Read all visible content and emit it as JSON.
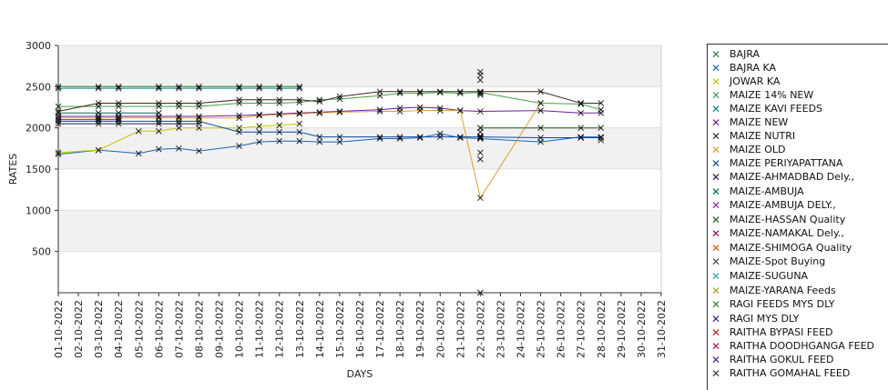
{
  "chart_data": {
    "type": "line",
    "title": "",
    "xlabel": "DAYS",
    "ylabel": "RATES",
    "ylim": [
      0,
      3000
    ],
    "yticks": [
      500,
      1000,
      1500,
      2000,
      2500,
      3000
    ],
    "grid": true,
    "legend_position": "right",
    "categories": [
      "01-10-2022",
      "02-10-2022",
      "03-10-2022",
      "04-10-2022",
      "05-10-2022",
      "06-10-2022",
      "07-10-2022",
      "08-10-2022",
      "09-10-2022",
      "10-10-2022",
      "11-10-2022",
      "12-10-2022",
      "13-10-2022",
      "14-10-2022",
      "15-10-2022",
      "16-10-2022",
      "17-10-2022",
      "18-10-2022",
      "19-10-2022",
      "20-10-2022",
      "21-10-2022",
      "22-10-2022",
      "23-10-2022",
      "24-10-2022",
      "25-10-2022",
      "26-10-2022",
      "27-10-2022",
      "28-10-2022",
      "29-10-2022",
      "30-10-2022",
      "31-10-2022"
    ],
    "series": [
      {
        "name": "BAJRA",
        "color": "#2e7d32",
        "points": [
          [
            0,
            2500
          ],
          [
            2,
            2500
          ],
          [
            3,
            2500
          ],
          [
            5,
            2500
          ],
          [
            6,
            2500
          ],
          [
            7,
            2500
          ],
          [
            9,
            2500
          ],
          [
            10,
            2500
          ],
          [
            11,
            2500
          ],
          [
            12,
            2500
          ]
        ]
      },
      {
        "name": "BAJRA KA",
        "color": "#1565c0",
        "points": [
          [
            0,
            1680
          ],
          [
            2,
            1730
          ],
          [
            4,
            1690
          ],
          [
            5,
            1740
          ],
          [
            6,
            1750
          ],
          [
            7,
            1720
          ],
          [
            9,
            1780
          ],
          [
            10,
            1830
          ],
          [
            11,
            1840
          ],
          [
            12,
            1840
          ],
          [
            13,
            1830
          ],
          [
            14,
            1830
          ],
          [
            16,
            1870
          ],
          [
            17,
            1870
          ],
          [
            18,
            1880
          ],
          [
            19,
            1930
          ],
          [
            20,
            1880
          ],
          [
            21,
            1870
          ],
          [
            24,
            1830
          ],
          [
            26,
            1890
          ],
          [
            27,
            1890
          ]
        ]
      },
      {
        "name": "JOWAR KA",
        "color": "#c6c600",
        "points": [
          [
            0,
            1700
          ],
          [
            2,
            1730
          ],
          [
            4,
            1960
          ],
          [
            5,
            1960
          ],
          [
            6,
            2000
          ],
          [
            7,
            2000
          ],
          [
            9,
            2000
          ],
          [
            10,
            2020
          ],
          [
            11,
            2030
          ],
          [
            12,
            2050
          ]
        ]
      },
      {
        "name": "MAIZE 14% NEW",
        "color": "#43a047",
        "points": [
          [
            0,
            2260
          ],
          [
            2,
            2260
          ],
          [
            3,
            2260
          ],
          [
            5,
            2260
          ],
          [
            6,
            2260
          ],
          [
            7,
            2260
          ],
          [
            9,
            2300
          ],
          [
            10,
            2300
          ],
          [
            11,
            2300
          ],
          [
            12,
            2310
          ],
          [
            13,
            2340
          ],
          [
            14,
            2350
          ],
          [
            16,
            2390
          ],
          [
            17,
            2420
          ],
          [
            18,
            2420
          ],
          [
            19,
            2430
          ],
          [
            20,
            2420
          ],
          [
            21,
            2430
          ],
          [
            24,
            2300
          ],
          [
            26,
            2290
          ],
          [
            27,
            2220
          ]
        ]
      },
      {
        "name": "MAIZE KAVI FEEDS",
        "color": "#00897b",
        "points": [
          [
            0,
            2480
          ],
          [
            2,
            2480
          ],
          [
            3,
            2480
          ],
          [
            5,
            2480
          ],
          [
            6,
            2480
          ],
          [
            7,
            2480
          ],
          [
            9,
            2480
          ],
          [
            10,
            2480
          ],
          [
            11,
            2480
          ],
          [
            12,
            2480
          ]
        ]
      },
      {
        "name": "MAIZE NEW",
        "color": "#6a1b9a",
        "points": [
          [
            0,
            2140
          ],
          [
            2,
            2140
          ],
          [
            3,
            2140
          ],
          [
            5,
            2140
          ],
          [
            6,
            2140
          ],
          [
            7,
            2140
          ],
          [
            9,
            2150
          ],
          [
            10,
            2160
          ],
          [
            11,
            2170
          ],
          [
            12,
            2180
          ],
          [
            13,
            2190
          ],
          [
            14,
            2200
          ],
          [
            16,
            2220
          ],
          [
            17,
            2240
          ],
          [
            18,
            2250
          ],
          [
            19,
            2240
          ],
          [
            20,
            2210
          ],
          [
            21,
            2200
          ],
          [
            24,
            2210
          ],
          [
            26,
            2180
          ],
          [
            27,
            2180
          ]
        ]
      },
      {
        "name": "MAIZE NUTRI",
        "color": "#3e2723",
        "points": [
          [
            0,
            2200
          ],
          [
            2,
            2300
          ],
          [
            3,
            2300
          ],
          [
            5,
            2300
          ],
          [
            6,
            2300
          ],
          [
            7,
            2300
          ],
          [
            9,
            2340
          ],
          [
            10,
            2340
          ],
          [
            11,
            2340
          ],
          [
            12,
            2340
          ],
          [
            13,
            2320
          ],
          [
            14,
            2380
          ],
          [
            16,
            2440
          ],
          [
            17,
            2440
          ],
          [
            18,
            2440
          ],
          [
            19,
            2440
          ],
          [
            20,
            2440
          ],
          [
            21,
            2440
          ],
          [
            24,
            2440
          ],
          [
            26,
            2300
          ],
          [
            27,
            2300
          ]
        ]
      },
      {
        "name": "MAIZE OLD",
        "color": "#e0a030",
        "points": [
          [
            0,
            2120
          ],
          [
            2,
            2120
          ],
          [
            3,
            2120
          ],
          [
            5,
            2120
          ],
          [
            6,
            2120
          ],
          [
            7,
            2120
          ],
          [
            9,
            2120
          ],
          [
            10,
            2150
          ],
          [
            11,
            2160
          ],
          [
            12,
            2170
          ],
          [
            13,
            2180
          ],
          [
            14,
            2190
          ],
          [
            16,
            2200
          ],
          [
            17,
            2200
          ],
          [
            18,
            2210
          ],
          [
            19,
            2210
          ],
          [
            20,
            2210
          ],
          [
            21,
            1150
          ],
          [
            24,
            2300
          ]
        ]
      },
      {
        "name": "MAIZE PERIYAPATTANA",
        "color": "#0d47a1",
        "points": [
          [
            0,
            2080
          ],
          [
            2,
            2080
          ],
          [
            3,
            2080
          ],
          [
            5,
            2080
          ],
          [
            6,
            2080
          ],
          [
            7,
            2080
          ],
          [
            9,
            1950
          ],
          [
            10,
            1950
          ],
          [
            11,
            1950
          ],
          [
            12,
            1950
          ],
          [
            13,
            1890
          ],
          [
            14,
            1890
          ],
          [
            16,
            1890
          ],
          [
            17,
            1890
          ],
          [
            18,
            1890
          ],
          [
            19,
            1890
          ],
          [
            20,
            1890
          ],
          [
            21,
            1890
          ],
          [
            24,
            1880
          ],
          [
            26,
            1880
          ],
          [
            27,
            1880
          ]
        ]
      },
      {
        "name": "MAIZE-AHMADBAD Dely.,",
        "color": "#1a1a40",
        "points": [
          [
            0,
            2050
          ],
          [
            2,
            2050
          ],
          [
            3,
            2050
          ],
          [
            5,
            2050
          ],
          [
            6,
            2050
          ],
          [
            7,
            2050
          ]
        ]
      },
      {
        "name": "MAIZE-AMBUJA",
        "color": "#00695c",
        "points": [
          [
            0,
            2180
          ],
          [
            2,
            2180
          ],
          [
            3,
            2180
          ],
          [
            5,
            2180
          ]
        ]
      },
      {
        "name": "MAIZE-AMBUJA DELY.,",
        "color": "#8e24aa",
        "points": [
          [
            0,
            2100
          ],
          [
            2,
            2100
          ],
          [
            3,
            2100
          ]
        ]
      },
      {
        "name": "MAIZE-HASSAN Quality",
        "color": "#1b5e20",
        "points": [
          [
            21,
            2000
          ],
          [
            24,
            2000
          ],
          [
            26,
            2000
          ],
          [
            27,
            2000
          ]
        ]
      },
      {
        "name": "MAIZE-NAMAKAL Dely.,",
        "color": "#880e4f",
        "points": [
          [
            21,
            2000
          ]
        ]
      },
      {
        "name": "MAIZE-SHIMOGA Quality",
        "color": "#e65100",
        "points": [
          [
            21,
            1700
          ]
        ]
      },
      {
        "name": "MAIZE-Spot Buying",
        "color": "#444444",
        "points": [
          [
            21,
            0
          ],
          [
            21,
            2680
          ],
          [
            21,
            2640
          ],
          [
            21,
            2580
          ],
          [
            21,
            1620
          ]
        ]
      },
      {
        "name": "MAIZE-SUGUNA",
        "color": "#26a69a",
        "points": [
          [
            21,
            1900
          ]
        ]
      },
      {
        "name": "MAIZE-YARANA Feeds",
        "color": "#9e9d24",
        "points": [
          [
            21,
            1870
          ]
        ]
      },
      {
        "name": "RAGI FEEDS MYS DLY",
        "color": "#2e7d32",
        "points": [
          [
            21,
            1880
          ]
        ]
      },
      {
        "name": "RAGI MYS DLY",
        "color": "#311b92",
        "points": [
          [
            21,
            2420
          ]
        ]
      },
      {
        "name": "RAITHA BYPASI FEED",
        "color": "#b71c1c",
        "points": [
          [
            21,
            2400
          ]
        ]
      },
      {
        "name": "RAITHA DOODHGANGA FEED",
        "color": "#ad1457",
        "points": [
          [
            21,
            1950
          ]
        ]
      },
      {
        "name": "RAITHA GOKUL FEED",
        "color": "#4a148c",
        "points": [
          [
            27,
            1850
          ]
        ]
      },
      {
        "name": "RAITHA GOMAHAL FEED",
        "color": "#333333",
        "points": []
      }
    ]
  }
}
